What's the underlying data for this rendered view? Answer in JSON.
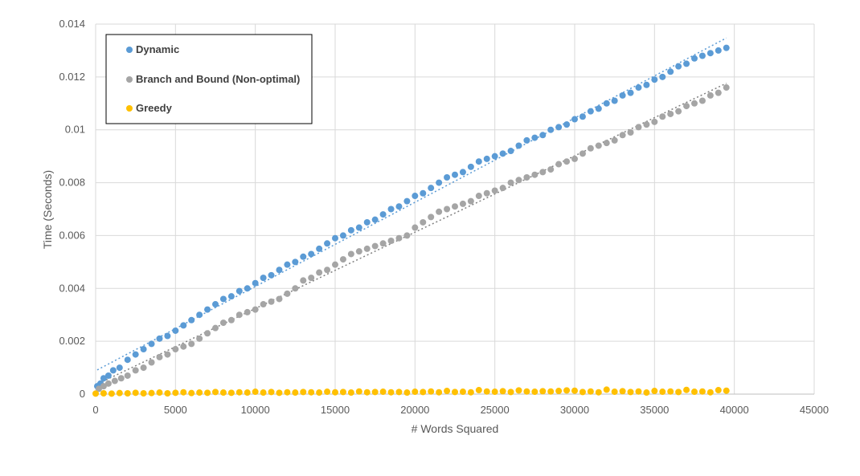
{
  "chart_data": {
    "type": "scatter",
    "title": "",
    "xlabel": "# Words Squared",
    "ylabel": "Time (Seconds)",
    "xlim": [
      0,
      45000
    ],
    "ylim": [
      0,
      0.014
    ],
    "x_ticks": [
      "0",
      "5000",
      "10000",
      "15000",
      "20000",
      "25000",
      "30000",
      "35000",
      "40000",
      "45000"
    ],
    "y_ticks": [
      "0",
      "0.002",
      "0.004",
      "0.006",
      "0.008",
      "0.01",
      "0.012",
      "0.014"
    ],
    "grid": "on",
    "legend_position": "top-left",
    "trendlines": "linear (dotted) for Dynamic and Branch and Bound",
    "series": [
      {
        "name": "Dynamic",
        "color": "#5B9BD5",
        "x": [
          100,
          300,
          500,
          800,
          1100,
          1500,
          2000,
          2500,
          3000,
          3500,
          4000,
          4500,
          5000,
          5500,
          6000,
          6500,
          7000,
          7500,
          8000,
          8500,
          9000,
          9500,
          10000,
          10500,
          11000,
          11500,
          12000,
          12500,
          13000,
          13500,
          14000,
          14500,
          15000,
          15500,
          16000,
          16500,
          17000,
          17500,
          18000,
          18500,
          19000,
          19500,
          20000,
          20500,
          21000,
          21500,
          22000,
          22500,
          23000,
          23500,
          24000,
          24500,
          25000,
          25500,
          26000,
          26500,
          27000,
          27500,
          28000,
          28500,
          29000,
          29500,
          30000,
          30500,
          31000,
          31500,
          32000,
          32500,
          33000,
          33500,
          34000,
          34500,
          35000,
          35500,
          36000,
          36500,
          37000,
          37500,
          38000,
          38500,
          39000,
          39500
        ],
        "y": [
          0.0003,
          0.0004,
          0.0006,
          0.0007,
          0.0009,
          0.001,
          0.0013,
          0.0015,
          0.0017,
          0.0019,
          0.0021,
          0.0022,
          0.0024,
          0.0026,
          0.0028,
          0.003,
          0.0032,
          0.0034,
          0.0036,
          0.0037,
          0.0039,
          0.004,
          0.0042,
          0.0044,
          0.0045,
          0.0047,
          0.0049,
          0.005,
          0.0052,
          0.0053,
          0.0055,
          0.0057,
          0.0059,
          0.006,
          0.0062,
          0.0063,
          0.0065,
          0.0066,
          0.0068,
          0.007,
          0.0071,
          0.0073,
          0.0075,
          0.0076,
          0.0078,
          0.008,
          0.0082,
          0.0083,
          0.0084,
          0.0086,
          0.0088,
          0.0089,
          0.009,
          0.0091,
          0.0092,
          0.0094,
          0.0096,
          0.0097,
          0.0098,
          0.01,
          0.0101,
          0.0102,
          0.0104,
          0.0105,
          0.0107,
          0.0108,
          0.011,
          0.0111,
          0.0113,
          0.0114,
          0.0116,
          0.0117,
          0.0119,
          0.012,
          0.0122,
          0.0124,
          0.0125,
          0.0127,
          0.0128,
          0.0129,
          0.013,
          0.0131
        ]
      },
      {
        "name": "Branch and Bound (Non-optimal)",
        "color": "#A5A5A5",
        "x": [
          200,
          500,
          800,
          1200,
          1600,
          2000,
          2500,
          3000,
          3500,
          4000,
          4500,
          5000,
          5500,
          6000,
          6500,
          7000,
          7500,
          8000,
          8500,
          9000,
          9500,
          10000,
          10500,
          11000,
          11500,
          12000,
          12500,
          13000,
          13500,
          14000,
          14500,
          15000,
          15500,
          16000,
          16500,
          17000,
          17500,
          18000,
          18500,
          19000,
          19500,
          20000,
          20500,
          21000,
          21500,
          22000,
          22500,
          23000,
          23500,
          24000,
          24500,
          25000,
          25500,
          26000,
          26500,
          27000,
          27500,
          28000,
          28500,
          29000,
          29500,
          30000,
          30500,
          31000,
          31500,
          32000,
          32500,
          33000,
          33500,
          34000,
          34500,
          35000,
          35500,
          36000,
          36500,
          37000,
          37500,
          38000,
          38500,
          39000,
          39500
        ],
        "y": [
          0.0002,
          0.0003,
          0.0004,
          0.0005,
          0.0006,
          0.0007,
          0.0009,
          0.001,
          0.0012,
          0.0014,
          0.0015,
          0.0017,
          0.0018,
          0.0019,
          0.0021,
          0.0023,
          0.0025,
          0.0027,
          0.0028,
          0.003,
          0.0031,
          0.0032,
          0.0034,
          0.0035,
          0.0036,
          0.0038,
          0.004,
          0.0043,
          0.0044,
          0.0046,
          0.0047,
          0.0049,
          0.0051,
          0.0053,
          0.0054,
          0.0055,
          0.0056,
          0.0057,
          0.0058,
          0.0059,
          0.006,
          0.0063,
          0.0065,
          0.0067,
          0.0069,
          0.007,
          0.0071,
          0.0072,
          0.0073,
          0.0075,
          0.0076,
          0.0077,
          0.0078,
          0.008,
          0.0081,
          0.0082,
          0.0083,
          0.0084,
          0.0085,
          0.0087,
          0.0088,
          0.0089,
          0.0091,
          0.0093,
          0.0094,
          0.0095,
          0.0096,
          0.0098,
          0.0099,
          0.0101,
          0.0102,
          0.0103,
          0.0105,
          0.0106,
          0.0107,
          0.0109,
          0.011,
          0.0111,
          0.0113,
          0.0114,
          0.0116
        ]
      },
      {
        "name": "Greedy",
        "color": "#FFC000",
        "x": [
          0,
          500,
          1000,
          1500,
          2000,
          2500,
          3000,
          3500,
          4000,
          4500,
          5000,
          5500,
          6000,
          6500,
          7000,
          7500,
          8000,
          8500,
          9000,
          9500,
          10000,
          10500,
          11000,
          11500,
          12000,
          12500,
          13000,
          13500,
          14000,
          14500,
          15000,
          15500,
          16000,
          16500,
          17000,
          17500,
          18000,
          18500,
          19000,
          19500,
          20000,
          20500,
          21000,
          21500,
          22000,
          22500,
          23000,
          23500,
          24000,
          24500,
          25000,
          25500,
          26000,
          26500,
          27000,
          27500,
          28000,
          28500,
          29000,
          29500,
          30000,
          30500,
          31000,
          31500,
          32000,
          32500,
          33000,
          33500,
          34000,
          34500,
          35000,
          35500,
          36000,
          36500,
          37000,
          37500,
          38000,
          38500,
          39000,
          39500
        ],
        "y": [
          2e-05,
          3e-05,
          2e-05,
          4e-05,
          3e-05,
          5e-05,
          3e-05,
          4e-05,
          6e-05,
          3e-05,
          5e-05,
          7e-05,
          4e-05,
          6e-05,
          5e-05,
          8e-05,
          6e-05,
          5e-05,
          7e-05,
          6e-05,
          9e-05,
          6e-05,
          8e-05,
          5e-05,
          7e-05,
          6e-05,
          8e-05,
          7e-05,
          6e-05,
          9e-05,
          7e-05,
          8e-05,
          6e-05,
          0.0001,
          7e-05,
          8e-05,
          9e-05,
          7e-05,
          8e-05,
          6e-05,
          9e-05,
          8e-05,
          0.0001,
          7e-05,
          0.00012,
          8e-05,
          9e-05,
          7e-05,
          0.00015,
          0.0001,
          9e-05,
          0.00011,
          8e-05,
          0.00014,
          0.0001,
          9e-05,
          0.00011,
          0.0001,
          0.00012,
          0.00014,
          0.00013,
          8e-05,
          0.0001,
          7e-05,
          0.00017,
          9e-05,
          0.00011,
          8e-05,
          0.0001,
          6e-05,
          0.00012,
          9e-05,
          0.0001,
          8e-05,
          0.00016,
          9e-05,
          0.0001,
          7e-05,
          0.00015,
          0.00013
        ]
      }
    ]
  }
}
